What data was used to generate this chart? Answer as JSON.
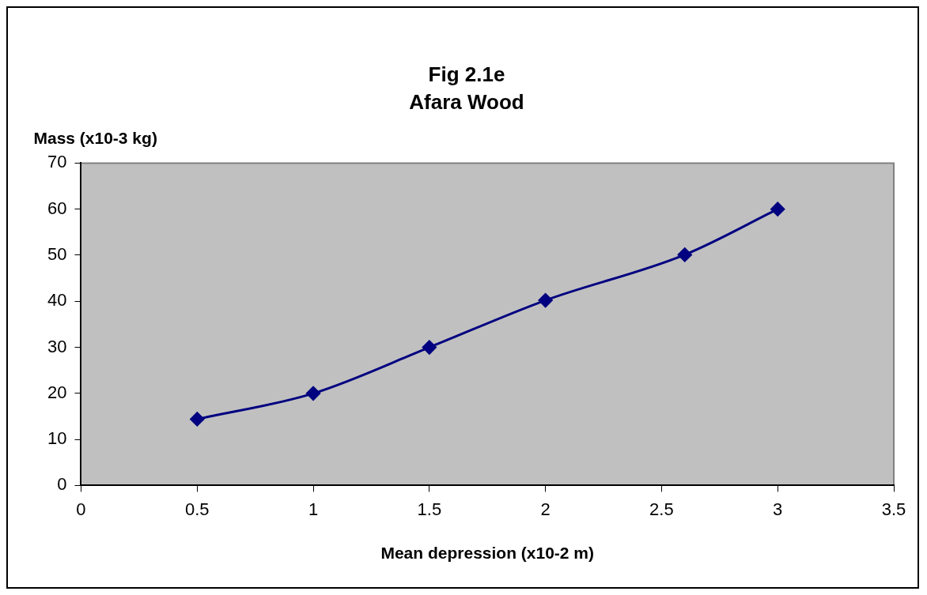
{
  "chart_data": {
    "type": "line",
    "title": "Fig 2.1e",
    "subtitle": "Afara Wood",
    "xlabel": "Mean depression (x10-2 m)",
    "ylabel": "Mass (x10-3 kg)",
    "x": [
      0.5,
      1,
      1.5,
      2,
      2.6,
      3
    ],
    "series": [
      {
        "color": "#000080",
        "values": [
          14.4,
          20,
          30,
          40.2,
          50.1,
          60
        ]
      }
    ],
    "xlim": [
      0,
      3.5
    ],
    "xticks": [
      0,
      0.5,
      1,
      1.5,
      2,
      2.5,
      3,
      3.5
    ],
    "ylim": [
      0,
      70
    ],
    "yticks": [
      0,
      10,
      20,
      30,
      40,
      50,
      60,
      70
    ],
    "grid": false,
    "legend": false,
    "marker": "diamond",
    "line_style": "solid"
  }
}
